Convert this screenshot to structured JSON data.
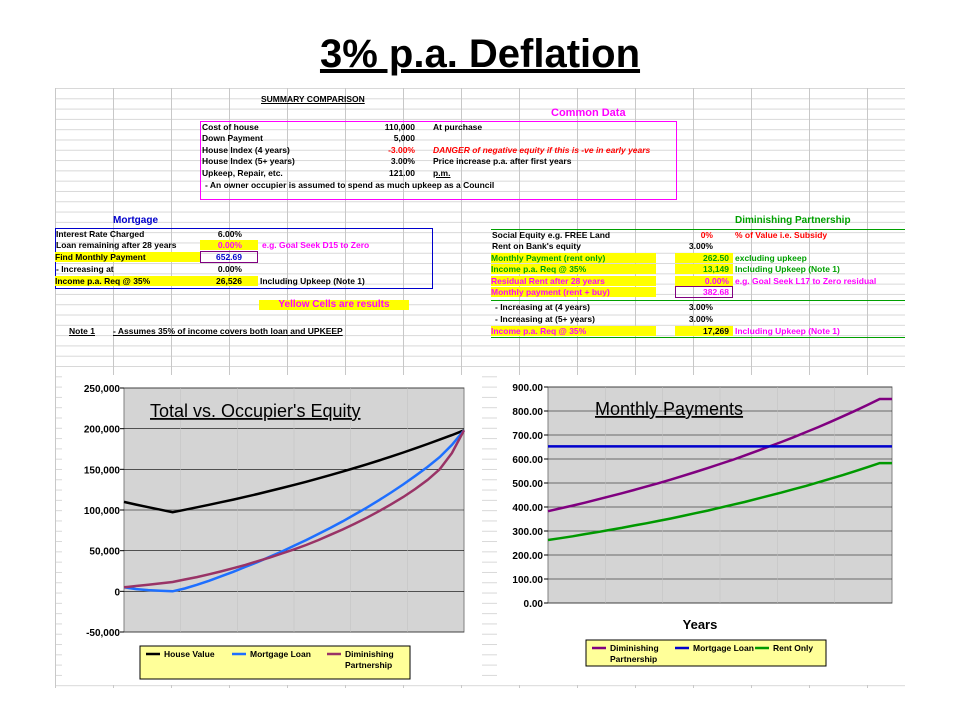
{
  "slide_title": "3% p.a. Deflation",
  "sheet": {
    "summary_heading": "SUMMARY COMPARISON",
    "common_data": {
      "heading": "Common Data",
      "rows": [
        {
          "label": "Cost of house",
          "value": "110,000",
          "note": "At purchase",
          "note_color": "#000000",
          "value_color": "#000000"
        },
        {
          "label": "Down Payment",
          "value": "5,000",
          "note": "",
          "note_color": "#000000",
          "value_color": "#000000"
        },
        {
          "label": "House Index (4 years)",
          "value": "-3.00%",
          "note": "DANGER of negative equity if this is -ve in early years",
          "note_color": "#ff0000",
          "value_color": "#ff0000"
        },
        {
          "label": "House Index (5+ years)",
          "value": "3.00%",
          "note": "Price increase p.a. after first years",
          "note_color": "#000000",
          "value_color": "#000000"
        },
        {
          "label": "Upkeep, Repair, etc.",
          "value": "121.00",
          "note": "p.m.",
          "note_color": "#000000",
          "value_color": "#000000"
        }
      ],
      "footnote": "- An owner occupier is assumed to spend as much upkeep as a Council"
    },
    "mortgage": {
      "heading": "Mortgage",
      "rows": [
        {
          "label": "Interest Rate Charged",
          "value": "6.00%",
          "note": ""
        },
        {
          "label": "Loan remaining after 28 years",
          "value": "0.00%",
          "note": "e.g. Goal Seek D15 to Zero"
        },
        {
          "label": "Find Monthly Payment",
          "value": "652.69",
          "note": ""
        },
        {
          "label": "- Increasing at",
          "value": "0.00%",
          "note": ""
        },
        {
          "label": "Income p.a. Req @ 35%",
          "value": "26,526",
          "note": "Including Upkeep (Note 1)"
        }
      ]
    },
    "yellow_note": "Yellow Cells are results",
    "note1_label": "Note 1",
    "note1_text": "- Assumes 35% of income covers both loan and UPKEEP",
    "partnership": {
      "heading": "Diminishing Partnership",
      "rows": [
        {
          "label": "Social Equity e.g. FREE Land",
          "value": "0%",
          "note": "% of Value  i.e. Subsidy",
          "color": "#000000",
          "value_color": "#ff0000",
          "note_color": "#ff0000"
        },
        {
          "label": "Rent on Bank's equity",
          "value": "3.00%",
          "note": "",
          "color": "#000000",
          "value_color": "#000000",
          "note_color": "#000000"
        },
        {
          "label": "Monthly Payment (rent only)",
          "value": "262.50",
          "note": "excluding upkeep",
          "color": "#00a000",
          "value_color": "#000000",
          "note_color": "#00a000"
        },
        {
          "label": "Income p.a. Req @ 35%",
          "value": "13,149",
          "note": "Including Upkeep (Note 1)",
          "color": "#00a000",
          "value_color": "#000000",
          "note_color": "#00a000"
        },
        {
          "label": "Residual Rent after 28 years",
          "value": "0.00%",
          "note": "e.g. Goal Seek L17 to Zero residual",
          "color": "#ff00ff",
          "value_color": "#ff00ff",
          "note_color": "#ff00ff"
        },
        {
          "label": "Monthly payment (rent + buy)",
          "value": "382.68",
          "note": "",
          "color": "#ff00ff",
          "value_color": "#000000",
          "note_color": "#ff00ff"
        },
        {
          "label": "- Increasing at (4 years)",
          "value": "3.00%",
          "note": "",
          "color": "#000000",
          "value_color": "#000000",
          "note_color": "#000000"
        },
        {
          "label": "- Increasing at (5+ years)",
          "value": "3.00%",
          "note": "",
          "color": "#000000",
          "value_color": "#000000",
          "note_color": "#000000"
        },
        {
          "label": "Income p.a. Req @ 35%",
          "value": "17,269",
          "note": "Including Upkeep (Note 1)",
          "color": "#ff00ff",
          "value_color": "#000000",
          "note_color": "#ff00ff"
        }
      ]
    }
  },
  "colors": {
    "magenta": "#ff00ff",
    "blue": "#0000cc",
    "green": "#00a000",
    "yellow": "#ffff00",
    "chart_bg": "#d4d4d4",
    "legend_bg": "#ffff99"
  },
  "chart_data": [
    {
      "type": "line",
      "title": "Total vs. Occupier's Equity",
      "xlabel": "",
      "ylabel": "",
      "ylim": [
        -50000,
        250000
      ],
      "yticks": [
        "250,000",
        "200,000",
        "150,000",
        "100,000",
        "50,000",
        "0",
        "-50,000"
      ],
      "ytick_values": [
        250000,
        200000,
        150000,
        100000,
        50000,
        0,
        -50000
      ],
      "x": [
        0,
        1,
        2,
        3,
        4,
        5,
        6,
        7,
        8,
        9,
        10,
        11,
        12,
        13,
        14,
        15,
        16,
        17,
        18,
        19,
        20,
        21,
        22,
        23,
        24,
        25,
        26,
        27,
        28
      ],
      "grid": true,
      "legend_position": "bottom",
      "series": [
        {
          "name": "House Value",
          "color": "#000000",
          "values": [
            110000,
            106700,
            103500,
            100400,
            97300,
            100200,
            103300,
            106400,
            109600,
            112800,
            116200,
            119700,
            123300,
            127000,
            130800,
            134700,
            138800,
            142900,
            147200,
            151600,
            156200,
            160900,
            165700,
            170700,
            175800,
            181100,
            186500,
            192100,
            198000
          ]
        },
        {
          "name": "Mortgage Loan",
          "color": "#1e6fff",
          "values": [
            5000,
            2800,
            1500,
            600,
            0,
            3500,
            8000,
            13000,
            18500,
            24000,
            30000,
            36000,
            42500,
            49000,
            56000,
            63000,
            70500,
            78000,
            86000,
            94500,
            103000,
            112000,
            121500,
            131500,
            142000,
            153000,
            165000,
            180000,
            198000
          ]
        },
        {
          "name": "Diminishing Partnership",
          "color": "#993366",
          "values": [
            5000,
            6500,
            8000,
            9800,
            11500,
            14500,
            17500,
            21000,
            24500,
            28500,
            32500,
            37000,
            41500,
            46500,
            51500,
            57000,
            63000,
            69500,
            76000,
            83000,
            90500,
            98500,
            107000,
            116000,
            126000,
            137000,
            150000,
            170000,
            198000
          ]
        }
      ]
    },
    {
      "type": "line",
      "title": "Monthly Payments",
      "xlabel": "Years",
      "ylabel": "",
      "ylim": [
        0,
        900
      ],
      "yticks": [
        "900.00",
        "800.00",
        "700.00",
        "600.00",
        "500.00",
        "400.00",
        "300.00",
        "200.00",
        "100.00",
        "0.00"
      ],
      "ytick_values": [
        900,
        800,
        700,
        600,
        500,
        400,
        300,
        200,
        100,
        0
      ],
      "x": [
        0,
        1,
        2,
        3,
        4,
        5,
        6,
        7,
        8,
        9,
        10,
        11,
        12,
        13,
        14,
        15,
        16,
        17,
        18,
        19,
        20,
        21,
        22,
        23,
        24,
        25,
        26,
        27,
        28
      ],
      "grid": true,
      "legend_position": "bottom",
      "series": [
        {
          "name": "Diminishing Partnership",
          "color": "#800080",
          "values": [
            382.68,
            394,
            406,
            418,
            431,
            444,
            457,
            471,
            485,
            499,
            514,
            530,
            546,
            562,
            579,
            596,
            614,
            633,
            652,
            671,
            691,
            712,
            733,
            755,
            778,
            801,
            825,
            850,
            850
          ]
        },
        {
          "name": "Mortgage Loan",
          "color": "#0000cc",
          "values": [
            652.69,
            652.69,
            652.69,
            652.69,
            652.69,
            652.69,
            652.69,
            652.69,
            652.69,
            652.69,
            652.69,
            652.69,
            652.69,
            652.69,
            652.69,
            652.69,
            652.69,
            652.69,
            652.69,
            652.69,
            652.69,
            652.69,
            652.69,
            652.69,
            652.69,
            652.69,
            652.69,
            652.69,
            652.69
          ]
        },
        {
          "name": "Rent  Only",
          "color": "#009900",
          "values": [
            262.5,
            270,
            278,
            287,
            295,
            304,
            313,
            323,
            332,
            342,
            352,
            363,
            374,
            385,
            397,
            409,
            421,
            434,
            447,
            460,
            474,
            488,
            503,
            518,
            533,
            549,
            566,
            583,
            583
          ]
        }
      ]
    }
  ]
}
